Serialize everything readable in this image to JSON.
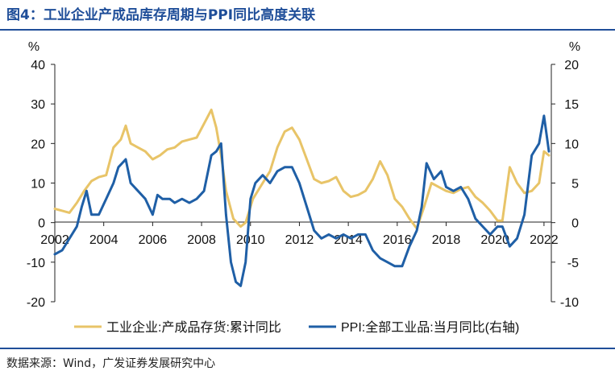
{
  "title": "图4：工业企业产成品库存周期与PPI同比高度关联",
  "source": "数据来源：Wind，广发证券发展研究中心",
  "colors": {
    "inventory": "#e8c468",
    "ppi": "#1f5fa6",
    "accent": "#1f4e99"
  },
  "chart_data": {
    "type": "line",
    "xlabel": "",
    "y_left": {
      "unit": "%",
      "ylim": [
        -20,
        40
      ],
      "ticks": [
        -20,
        -10,
        0,
        10,
        20,
        30,
        40
      ]
    },
    "y_right": {
      "unit": "%",
      "ylim": [
        -10,
        20
      ],
      "ticks": [
        -10,
        -5,
        0,
        5,
        10,
        15,
        20
      ]
    },
    "x_range": [
      2002,
      2022.3
    ],
    "x_ticks": [
      "2002",
      "2004",
      "2006",
      "2008",
      "2010",
      "2012",
      "2014",
      "2016",
      "2018",
      "2020",
      "2022"
    ],
    "grid": false,
    "legend": "bottom",
    "series": [
      {
        "name": "工业企业:产成品存货:累计同比",
        "axis": "left",
        "x": [
          2002.0,
          2002.3,
          2002.6,
          2002.9,
          2003.2,
          2003.5,
          2003.8,
          2004.1,
          2004.4,
          2004.7,
          2004.9,
          2005.1,
          2005.4,
          2005.7,
          2006.0,
          2006.3,
          2006.6,
          2006.9,
          2007.2,
          2007.5,
          2007.8,
          2008.1,
          2008.4,
          2008.6,
          2008.8,
          2009.0,
          2009.3,
          2009.6,
          2009.8,
          2010.1,
          2010.4,
          2010.8,
          2011.1,
          2011.4,
          2011.7,
          2012.0,
          2012.3,
          2012.6,
          2012.9,
          2013.2,
          2013.5,
          2013.8,
          2014.1,
          2014.4,
          2014.7,
          2015.0,
          2015.3,
          2015.6,
          2015.9,
          2016.2,
          2016.5,
          2016.8,
          2017.1,
          2017.4,
          2017.7,
          2018.0,
          2018.3,
          2018.6,
          2018.9,
          2019.2,
          2019.5,
          2019.8,
          2020.1,
          2020.3,
          2020.6,
          2020.9,
          2021.2,
          2021.5,
          2021.8,
          2022.0,
          2022.2
        ],
        "y": [
          3.5,
          3,
          2.5,
          5,
          8,
          10.5,
          11.5,
          12,
          19,
          21,
          24.5,
          20,
          19,
          18,
          16,
          17,
          18.5,
          19,
          20.5,
          21,
          21.5,
          25,
          28.5,
          24,
          17,
          8,
          1,
          -1,
          0,
          6,
          9,
          13,
          19,
          23,
          24,
          21,
          16,
          11,
          10,
          10.5,
          11.5,
          8,
          6.5,
          7,
          8,
          11,
          15.5,
          12,
          6,
          4,
          1,
          -1.5,
          4,
          10,
          9,
          8,
          7.5,
          8.5,
          9,
          6.5,
          5,
          3,
          0.5,
          0.5,
          14,
          10,
          7.5,
          8,
          10,
          18,
          17
        ]
      },
      {
        "name": "PPI:全部工业品:当月同比(右轴)",
        "axis": "right",
        "x": [
          2002.0,
          2002.3,
          2002.6,
          2002.9,
          2003.1,
          2003.3,
          2003.5,
          2003.8,
          2004.1,
          2004.4,
          2004.6,
          2004.9,
          2005.1,
          2005.4,
          2005.7,
          2006.0,
          2006.2,
          2006.4,
          2006.7,
          2006.9,
          2007.2,
          2007.5,
          2007.8,
          2008.1,
          2008.4,
          2008.6,
          2008.8,
          2009.0,
          2009.2,
          2009.4,
          2009.6,
          2009.8,
          2010.0,
          2010.2,
          2010.5,
          2010.8,
          2011.1,
          2011.4,
          2011.7,
          2012.0,
          2012.3,
          2012.6,
          2012.9,
          2013.2,
          2013.5,
          2013.8,
          2014.1,
          2014.4,
          2014.7,
          2015.0,
          2015.3,
          2015.6,
          2015.9,
          2016.2,
          2016.5,
          2016.8,
          2017.0,
          2017.2,
          2017.5,
          2017.8,
          2018.0,
          2018.3,
          2018.6,
          2018.9,
          2019.2,
          2019.5,
          2019.8,
          2020.1,
          2020.3,
          2020.6,
          2020.9,
          2021.2,
          2021.5,
          2021.8,
          2022.0,
          2022.2
        ],
        "y": [
          -4,
          -3.5,
          -2,
          -0.5,
          2,
          4,
          1,
          1,
          3,
          5,
          7,
          8,
          5,
          4,
          3,
          1,
          3.5,
          3,
          3,
          2.5,
          3,
          2.5,
          3,
          4,
          8.5,
          9,
          10,
          1,
          -5,
          -7.5,
          -8,
          -5,
          3,
          5,
          6,
          5,
          6.5,
          7,
          7,
          5,
          2,
          -1,
          -2,
          -1.5,
          -2,
          -1.5,
          -2,
          -1.5,
          -1.5,
          -3.5,
          -4.5,
          -5,
          -5.5,
          -5.5,
          -3,
          -1,
          2,
          7.5,
          5.5,
          6.5,
          4.5,
          4,
          4.5,
          3,
          0.5,
          -0.5,
          -1.5,
          -0.5,
          -0.5,
          -3,
          -2,
          1,
          8.5,
          10,
          13.5,
          9
        ]
      }
    ]
  }
}
